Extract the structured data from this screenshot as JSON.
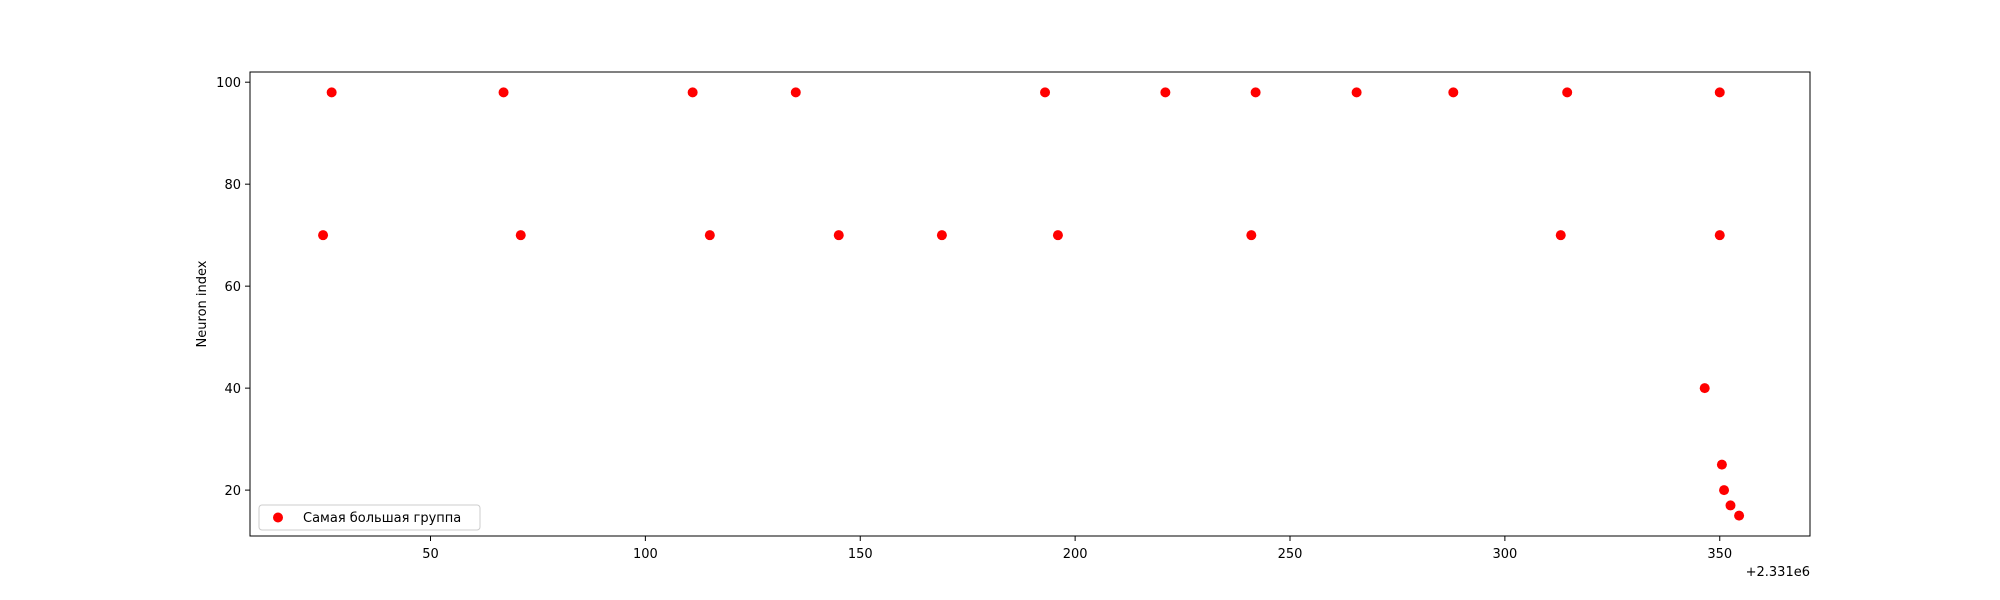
{
  "chart_data": {
    "type": "scatter",
    "title": "",
    "xlabel": "",
    "ylabel": "Neuron index",
    "x_offset_label": "+2.331e6",
    "x_tick_labels": [
      "50",
      "100",
      "150",
      "200",
      "250",
      "300",
      "350"
    ],
    "y_tick_labels": [
      "20",
      "40",
      "60",
      "80",
      "100"
    ],
    "xlim": [
      2331008,
      2331371
    ],
    "ylim": [
      11,
      102
    ],
    "grid": false,
    "legend_position": "lower-left",
    "series": [
      {
        "name": "Самая большая группа",
        "color": "#ff0000",
        "points": [
          {
            "x": 2331025,
            "y": 70
          },
          {
            "x": 2331027,
            "y": 98
          },
          {
            "x": 2331067,
            "y": 98
          },
          {
            "x": 2331071,
            "y": 70
          },
          {
            "x": 2331111,
            "y": 98
          },
          {
            "x": 2331115,
            "y": 70
          },
          {
            "x": 2331135,
            "y": 98
          },
          {
            "x": 2331145,
            "y": 70
          },
          {
            "x": 2331169,
            "y": 70
          },
          {
            "x": 2331193,
            "y": 98
          },
          {
            "x": 2331196,
            "y": 70
          },
          {
            "x": 2331221,
            "y": 98
          },
          {
            "x": 2331241,
            "y": 70
          },
          {
            "x": 2331242,
            "y": 98
          },
          {
            "x": 2331265.5,
            "y": 98
          },
          {
            "x": 2331288,
            "y": 98
          },
          {
            "x": 2331313,
            "y": 70
          },
          {
            "x": 2331314.5,
            "y": 98
          },
          {
            "x": 2331346.5,
            "y": 40
          },
          {
            "x": 2331350,
            "y": 98
          },
          {
            "x": 2331350,
            "y": 70
          },
          {
            "x": 2331350.5,
            "y": 25
          },
          {
            "x": 2331351,
            "y": 20
          },
          {
            "x": 2331352.5,
            "y": 17
          },
          {
            "x": 2331354.5,
            "y": 15
          }
        ]
      }
    ]
  }
}
